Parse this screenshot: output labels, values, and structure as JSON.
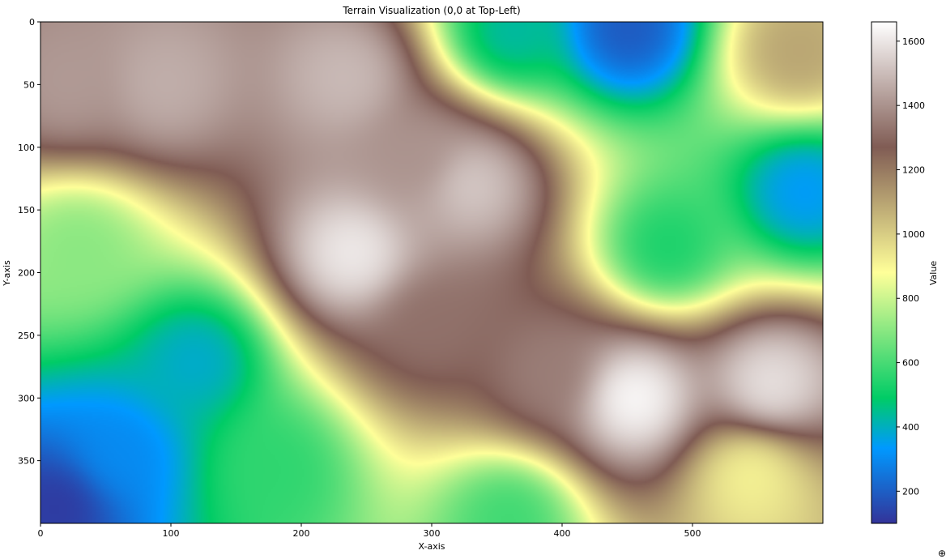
{
  "chart_data": {
    "type": "heatmap",
    "title": "Terrain Visualization (0,0 at Top-Left)",
    "xlabel": "X-axis",
    "ylabel": "Y-axis",
    "x_range": [
      0,
      600
    ],
    "y_range": [
      400,
      0
    ],
    "x_ticks": [
      0,
      100,
      200,
      300,
      400,
      500
    ],
    "y_ticks": [
      0,
      50,
      100,
      150,
      200,
      250,
      300,
      350
    ],
    "colorbar": {
      "label": "Value",
      "range": [
        100,
        1660
      ],
      "ticks": [
        200,
        400,
        600,
        800,
        1000,
        1200,
        1400,
        1600
      ],
      "colormap": "terrain",
      "colormap_stops": [
        {
          "pos": 0.0,
          "color": "#333399"
        },
        {
          "pos": 0.15,
          "color": "#0099ff"
        },
        {
          "pos": 0.25,
          "color": "#00cc66"
        },
        {
          "pos": 0.5,
          "color": "#ffff99"
        },
        {
          "pos": 0.75,
          "color": "#805c54"
        },
        {
          "pos": 1.0,
          "color": "#ffffff"
        }
      ]
    },
    "terrain_features": [
      {
        "x": 20,
        "y": 50,
        "value": 1420
      },
      {
        "x": 95,
        "y": 50,
        "value": 1470
      },
      {
        "x": 235,
        "y": 45,
        "value": 1500
      },
      {
        "x": 240,
        "y": 185,
        "value": 1620
      },
      {
        "x": 330,
        "y": 130,
        "value": 1540
      },
      {
        "x": 290,
        "y": 110,
        "value": 1400
      },
      {
        "x": 300,
        "y": 240,
        "value": 1320
      },
      {
        "x": 455,
        "y": 300,
        "value": 1660
      },
      {
        "x": 560,
        "y": 290,
        "value": 1600
      },
      {
        "x": 390,
        "y": 280,
        "value": 1350
      },
      {
        "x": 450,
        "y": 5,
        "value": 180
      },
      {
        "x": 360,
        "y": 10,
        "value": 420
      },
      {
        "x": 585,
        "y": 135,
        "value": 330
      },
      {
        "x": 480,
        "y": 180,
        "value": 520
      },
      {
        "x": 120,
        "y": 270,
        "value": 380
      },
      {
        "x": 15,
        "y": 385,
        "value": 110
      },
      {
        "x": 60,
        "y": 345,
        "value": 300
      },
      {
        "x": 180,
        "y": 355,
        "value": 560
      },
      {
        "x": 30,
        "y": 180,
        "value": 700
      },
      {
        "x": 360,
        "y": 395,
        "value": 580
      },
      {
        "x": 580,
        "y": 25,
        "value": 1100
      },
      {
        "x": 545,
        "y": 360,
        "value": 900
      }
    ]
  },
  "corner_glyph": "⊕"
}
